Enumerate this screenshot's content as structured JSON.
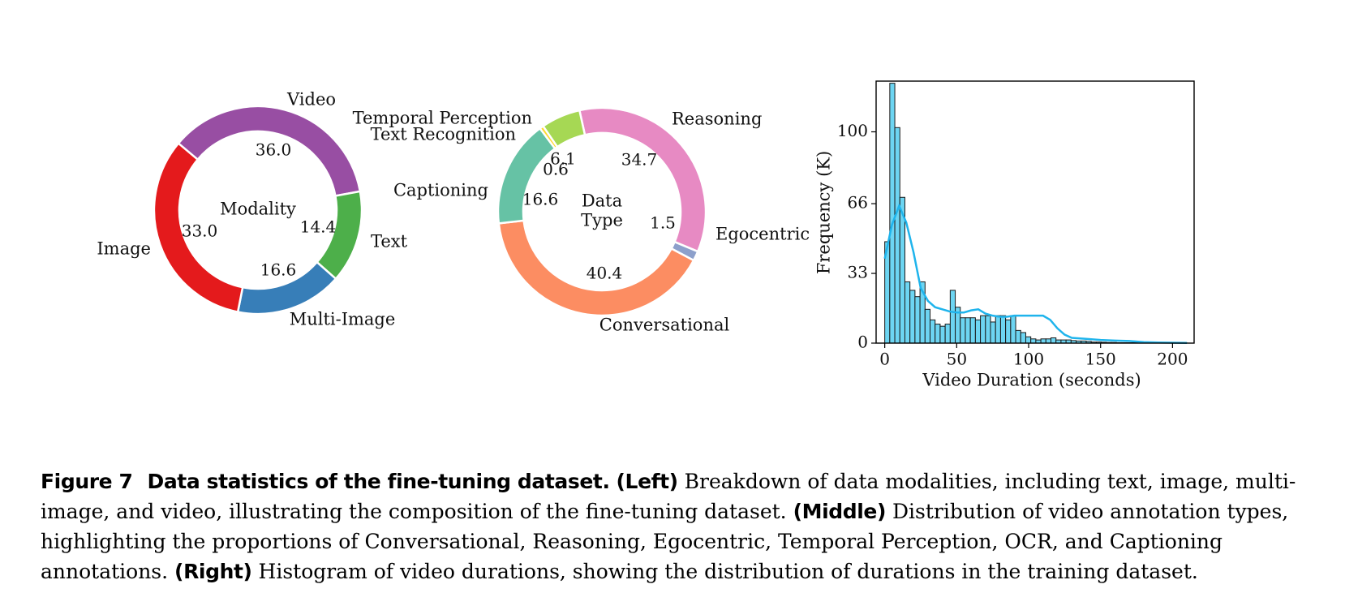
{
  "chart_data": [
    {
      "type": "donut",
      "center_label": "Modality",
      "slices": [
        {
          "label": "Video",
          "value": 36.0,
          "color": "#984ea3"
        },
        {
          "label": "Text",
          "value": 14.4,
          "color": "#4daf4a"
        },
        {
          "label": "Multi-Image",
          "value": 16.6,
          "color": "#377eb8"
        },
        {
          "label": "Image",
          "value": 33.0,
          "color": "#e41a1c"
        }
      ]
    },
    {
      "type": "donut",
      "center_label": "Data\nType",
      "slices": [
        {
          "label": "Reasoning",
          "value": 34.7,
          "color": "#e78ac3"
        },
        {
          "label": "Egocentric",
          "value": 1.5,
          "color": "#8da0cb"
        },
        {
          "label": "Conversational",
          "value": 40.4,
          "color": "#fc8d62"
        },
        {
          "label": "Captioning",
          "value": 16.6,
          "color": "#66c2a5"
        },
        {
          "label": "Text Recognition",
          "value": 0.6,
          "color": "#ffd92f"
        },
        {
          "label": "Temporal Perception",
          "value": 6.1,
          "color": "#a6d854"
        }
      ]
    },
    {
      "type": "histogram",
      "xlabel": "Video Duration (seconds)",
      "ylabel": "Frequency (K)",
      "xlim": [
        -6,
        215
      ],
      "ylim": [
        0,
        124
      ],
      "xticks": [
        0,
        50,
        100,
        150,
        200
      ],
      "yticks": [
        0,
        33,
        66,
        100
      ],
      "bin_width": 3.5,
      "bins_start": 0,
      "bar_color": "#6dd5f2",
      "kde_color": "#1fb4ec",
      "values": [
        48,
        123,
        102,
        69,
        29,
        25,
        22,
        29,
        16,
        11,
        9,
        8,
        9,
        25,
        17,
        12,
        12,
        12,
        11,
        13,
        13,
        10,
        13,
        13,
        11,
        13,
        6,
        5,
        3,
        2,
        1.5,
        2,
        2,
        2.5,
        1.5,
        1.5,
        1.5,
        1.2,
        1,
        1,
        0.8,
        0.5,
        0.5,
        0.4,
        0.3,
        0.3,
        0.2,
        0.2,
        0.2,
        0.2,
        0.2,
        0.2,
        0.1,
        0.1,
        0.1,
        0.1,
        0.1,
        0.1,
        0.1,
        0.1
      ],
      "kde": [
        [
          0,
          40
        ],
        [
          5,
          56
        ],
        [
          10,
          65
        ],
        [
          15,
          57
        ],
        [
          20,
          43
        ],
        [
          25,
          26
        ],
        [
          30,
          20
        ],
        [
          35,
          17
        ],
        [
          40,
          16
        ],
        [
          45,
          15
        ],
        [
          50,
          14.5
        ],
        [
          55,
          14.5
        ],
        [
          60,
          15.5
        ],
        [
          65,
          16
        ],
        [
          70,
          14
        ],
        [
          75,
          13
        ],
        [
          80,
          12.5
        ],
        [
          85,
          12.5
        ],
        [
          90,
          13
        ],
        [
          95,
          13
        ],
        [
          100,
          13
        ],
        [
          105,
          13
        ],
        [
          110,
          13
        ],
        [
          115,
          11
        ],
        [
          120,
          7
        ],
        [
          125,
          4
        ],
        [
          130,
          2.5
        ],
        [
          140,
          2
        ],
        [
          150,
          1.5
        ],
        [
          160,
          1.2
        ],
        [
          170,
          1
        ],
        [
          180,
          0.5
        ],
        [
          190,
          0.3
        ],
        [
          200,
          0.2
        ],
        [
          210,
          0.1
        ]
      ]
    }
  ],
  "caption": {
    "figure_number": "Figure 7",
    "bold_title": "Data statistics of the fine-tuning dataset.",
    "left_tag": "(Left)",
    "left_text": "Breakdown of data modalities, including text, image, multi-image, and video, illustrating the composition of the fine-tuning dataset.",
    "middle_tag": "(Middle)",
    "middle_text": "Distribution of video annotation types, highlighting the proportions of Conversational, Reasoning, Egocentric, Temporal Perception, OCR, and Captioning annotations.",
    "right_tag": "(Right)",
    "right_text": "Histogram of video durations, showing the distribution of durations in the training dataset."
  }
}
